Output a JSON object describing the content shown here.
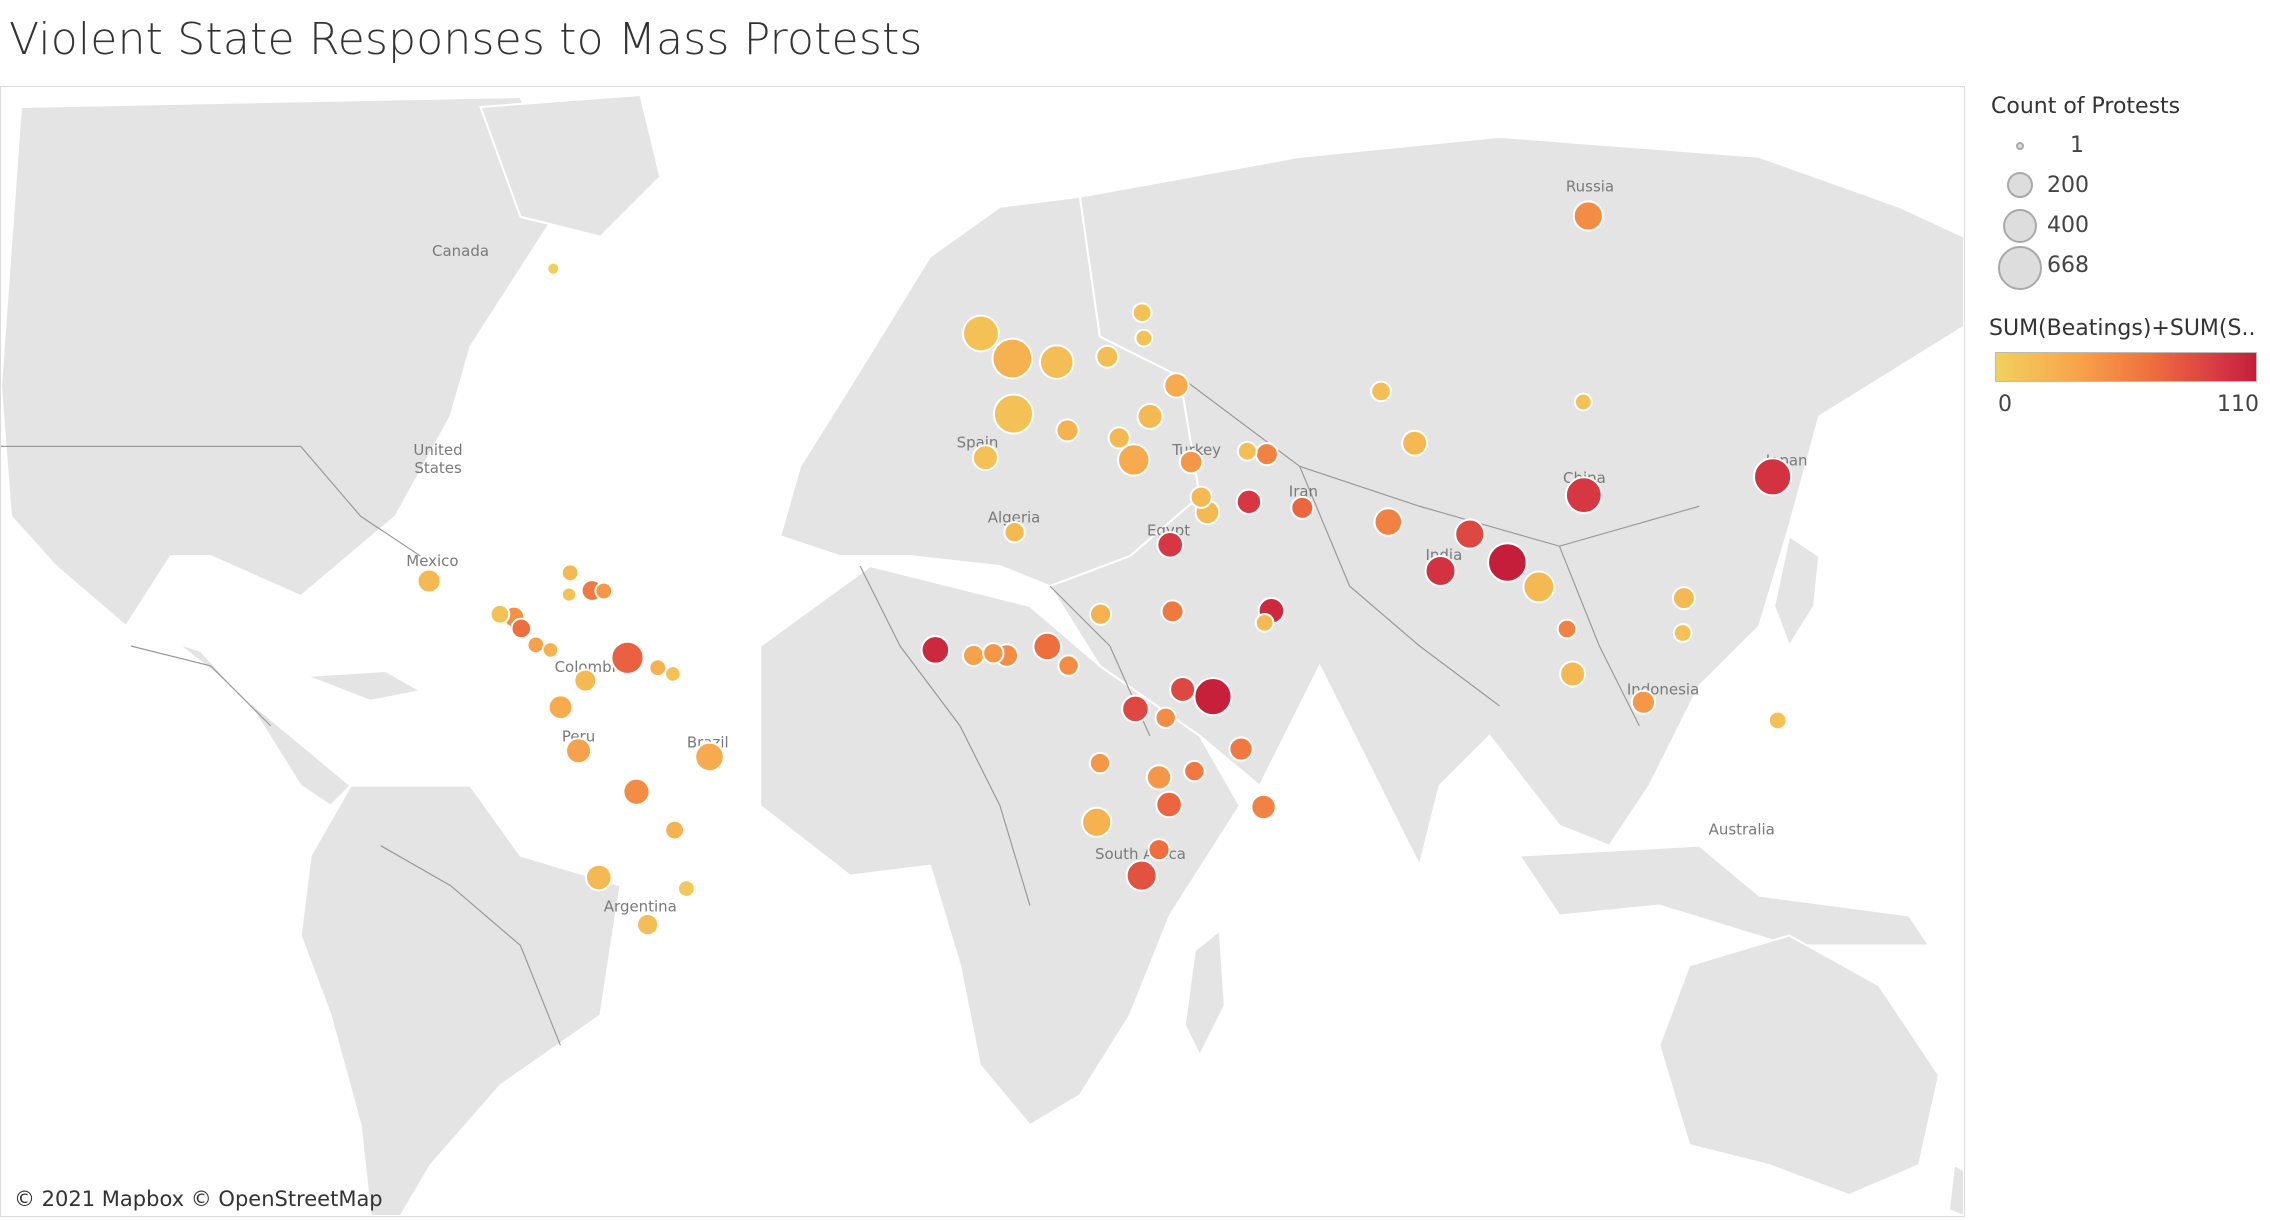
{
  "title": "Violent State Responses to Mass Protests",
  "attribution": "© 2021 Mapbox © OpenStreetMap",
  "map_labels": [
    "Canada",
    "United States",
    "Mexico",
    "Colombia",
    "Peru",
    "Brazil",
    "Argentina",
    "Spain",
    "Algeria",
    "Egypt",
    "Turkey",
    "Iran",
    "Russia",
    "India",
    "China",
    "Japan",
    "Indonesia",
    "South Africa",
    "Australia"
  ],
  "legend": {
    "size_title": "Count of Protests",
    "size_items": [
      {
        "label": "1",
        "value": 1
      },
      {
        "label": "200",
        "value": 200
      },
      {
        "label": "400",
        "value": 400
      },
      {
        "label": "668",
        "value": 668
      }
    ],
    "color_title": "SUM(Beatings)+SUM(S..",
    "color_min": "0",
    "color_max": "110",
    "color_stops": [
      "#f2d05e",
      "#f7a64c",
      "#ef6e3e",
      "#d83a44",
      "#c51e3a"
    ]
  },
  "map_data": {
    "measure_size": "Count of Protests",
    "measure_color": "SUM(Beatings)+SUM(S..",
    "points": [
      {
        "lon": -79.5,
        "lat": 60.9,
        "protests": 8,
        "violence": 2
      },
      {
        "lon": -101.6,
        "lat": 20.5,
        "protests": 120,
        "violence": 15
      },
      {
        "lon": -89.0,
        "lat": 14.8,
        "protests": 60,
        "violence": 10
      },
      {
        "lon": -86.5,
        "lat": 14.3,
        "protests": 85,
        "violence": 38
      },
      {
        "lon": -85.2,
        "lat": 12.3,
        "protests": 70,
        "violence": 55
      },
      {
        "lon": -82.6,
        "lat": 9.4,
        "protests": 40,
        "violence": 30
      },
      {
        "lon": -80.0,
        "lat": 8.5,
        "protests": 30,
        "violence": 20
      },
      {
        "lon": -76.5,
        "lat": 21.9,
        "protests": 40,
        "violence": 15
      },
      {
        "lon": -76.7,
        "lat": 18.2,
        "protests": 20,
        "violence": 10
      },
      {
        "lon": -72.6,
        "lat": 18.9,
        "protests": 85,
        "violence": 50
      },
      {
        "lon": -70.5,
        "lat": 18.8,
        "protests": 40,
        "violence": 35
      },
      {
        "lon": -66.3,
        "lat": 7.1,
        "protests": 300,
        "violence": 62
      },
      {
        "lon": -73.8,
        "lat": 3.0,
        "protests": 100,
        "violence": 15
      },
      {
        "lon": -60.9,
        "lat": 5.3,
        "protests": 40,
        "violence": 20
      },
      {
        "lon": -58.2,
        "lat": 4.2,
        "protests": 30,
        "violence": 10
      },
      {
        "lon": -78.2,
        "lat": -1.8,
        "protests": 130,
        "violence": 25
      },
      {
        "lon": -75.0,
        "lat": -9.6,
        "protests": 150,
        "violence": 30
      },
      {
        "lon": -64.7,
        "lat": -16.8,
        "protests": 170,
        "violence": 40
      },
      {
        "lon": -71.4,
        "lat": -30.9,
        "protests": 160,
        "violence": 15
      },
      {
        "lon": -57.9,
        "lat": -23.3,
        "protests": 60,
        "violence": 20
      },
      {
        "lon": -51.7,
        "lat": -10.7,
        "protests": 220,
        "violence": 25
      },
      {
        "lon": -62.7,
        "lat": -37.9,
        "protests": 90,
        "violence": 12
      },
      {
        "lon": -55.8,
        "lat": -32.6,
        "protests": 40,
        "violence": 5
      },
      {
        "lon": -3.4,
        "lat": 54.7,
        "protests": 400,
        "violence": 10
      },
      {
        "lon": 2.2,
        "lat": 52.0,
        "protests": 520,
        "violence": 20
      },
      {
        "lon": 2.4,
        "lat": 45.4,
        "protests": 500,
        "violence": 10
      },
      {
        "lon": -2.6,
        "lat": 39.6,
        "protests": 150,
        "violence": 10
      },
      {
        "lon": 10.1,
        "lat": 51.6,
        "protests": 340,
        "violence": 12
      },
      {
        "lon": 12.0,
        "lat": 43.3,
        "protests": 100,
        "violence": 20
      },
      {
        "lon": 19.1,
        "lat": 52.2,
        "protests": 100,
        "violence": 12
      },
      {
        "lon": 26.7,
        "lat": 45.1,
        "protests": 150,
        "violence": 15
      },
      {
        "lon": 23.8,
        "lat": 39.3,
        "protests": 280,
        "violence": 25
      },
      {
        "lon": 21.2,
        "lat": 42.3,
        "protests": 90,
        "violence": 15
      },
      {
        "lon": 31.4,
        "lat": 48.9,
        "protests": 140,
        "violence": 25
      },
      {
        "lon": 25.3,
        "lat": 56.8,
        "protests": 60,
        "violence": 10
      },
      {
        "lon": 25.6,
        "lat": 54.2,
        "protests": 40,
        "violence": 10
      },
      {
        "lon": 34.0,
        "lat": 39.0,
        "protests": 110,
        "violence": 35
      },
      {
        "lon": 35.8,
        "lat": 33.9,
        "protests": 90,
        "violence": 15
      },
      {
        "lon": 36.9,
        "lat": 31.6,
        "protests": 130,
        "violence": 15
      },
      {
        "lon": 44.3,
        "lat": 33.2,
        "protests": 140,
        "violence": 85
      },
      {
        "lon": 44.0,
        "lat": 40.5,
        "protests": 60,
        "violence": 12
      },
      {
        "lon": 47.5,
        "lat": 40.1,
        "protests": 100,
        "violence": 45
      },
      {
        "lon": 53.8,
        "lat": 32.3,
        "protests": 100,
        "violence": 60
      },
      {
        "lon": 2.6,
        "lat": 28.5,
        "protests": 80,
        "violence": 15
      },
      {
        "lon": 30.3,
        "lat": 26.5,
        "protests": 160,
        "violence": 85
      },
      {
        "lon": 30.7,
        "lat": 15.3,
        "protests": 100,
        "violence": 50
      },
      {
        "lon": 48.3,
        "lat": 15.4,
        "protests": 160,
        "violence": 100
      },
      {
        "lon": 69.1,
        "lat": 30.1,
        "protests": 200,
        "violence": 45
      },
      {
        "lon": 78.4,
        "lat": 22.2,
        "protests": 250,
        "violence": 90
      },
      {
        "lon": 83.6,
        "lat": 28.2,
        "protests": 230,
        "violence": 75
      },
      {
        "lon": 90.3,
        "lat": 23.6,
        "protests": 480,
        "violence": 110
      },
      {
        "lon": 103.9,
        "lat": 34.2,
        "protests": 400,
        "violence": 85
      },
      {
        "lon": 137.5,
        "lat": 36.9,
        "protests": 440,
        "violence": 90
      },
      {
        "lon": 95.9,
        "lat": 19.5,
        "protests": 270,
        "violence": 15
      },
      {
        "lon": 100.9,
        "lat": 12.2,
        "protests": 60,
        "violence": 45
      },
      {
        "lon": 101.9,
        "lat": 4.2,
        "protests": 150,
        "violence": 15
      },
      {
        "lon": 114.5,
        "lat": -0.9,
        "protests": 120,
        "violence": 35
      },
      {
        "lon": 121.7,
        "lat": 17.6,
        "protests": 100,
        "violence": 15
      },
      {
        "lon": 121.5,
        "lat": 11.5,
        "protests": 50,
        "violence": 10
      },
      {
        "lon": 67.8,
        "lat": 48.2,
        "protests": 70,
        "violence": 12
      },
      {
        "lon": 73.8,
        "lat": 41.6,
        "protests": 150,
        "violence": 15
      },
      {
        "lon": 103.8,
        "lat": 46.9,
        "protests": 40,
        "violence": 10
      },
      {
        "lon": 104.7,
        "lat": 65.2,
        "protests": 230,
        "violence": 40
      },
      {
        "lon": -11.5,
        "lat": 8.5,
        "protests": 200,
        "violence": 100
      },
      {
        "lon": -4.7,
        "lat": 7.5,
        "protests": 90,
        "violence": 30
      },
      {
        "lon": -1.2,
        "lat": 7.9,
        "protests": 80,
        "violence": 35
      },
      {
        "lon": 1.2,
        "lat": 7.5,
        "protests": 110,
        "violence": 40
      },
      {
        "lon": 8.4,
        "lat": 9.1,
        "protests": 200,
        "violence": 55
      },
      {
        "lon": 17.9,
        "lat": 14.8,
        "protests": 90,
        "violence": 20
      },
      {
        "lon": 12.2,
        "lat": 5.7,
        "protests": 80,
        "violence": 40
      },
      {
        "lon": 24.1,
        "lat": -2.1,
        "protests": 180,
        "violence": 75
      },
      {
        "lon": 37.9,
        "lat": 0.1,
        "protests": 440,
        "violence": 108
      },
      {
        "lon": 32.5,
        "lat": 1.4,
        "protests": 150,
        "violence": 75
      },
      {
        "lon": 29.5,
        "lat": -3.7,
        "protests": 80,
        "violence": 40
      },
      {
        "lon": 17.8,
        "lat": -11.8,
        "protests": 80,
        "violence": 35
      },
      {
        "lon": 34.6,
        "lat": -13.2,
        "protests": 80,
        "violence": 50
      },
      {
        "lon": 28.3,
        "lat": -14.3,
        "protests": 140,
        "violence": 35
      },
      {
        "lon": 30.1,
        "lat": -19.0,
        "protests": 160,
        "violence": 60
      },
      {
        "lon": 17.2,
        "lat": -22.0,
        "protests": 230,
        "violence": 20
      },
      {
        "lon": 25.2,
        "lat": -30.6,
        "protests": 250,
        "violence": 70
      },
      {
        "lon": 28.3,
        "lat": -26.5,
        "protests": 90,
        "violence": 55
      },
      {
        "lon": 46.9,
        "lat": -19.4,
        "protests": 140,
        "violence": 45
      },
      {
        "lon": 42.9,
        "lat": -9.3,
        "protests": 120,
        "violence": 50
      },
      {
        "lon": 47.1,
        "lat": 13.3,
        "protests": 50,
        "violence": 15
      },
      {
        "lon": 138.4,
        "lat": -4.2,
        "protests": 50,
        "violence": 10
      }
    ]
  }
}
